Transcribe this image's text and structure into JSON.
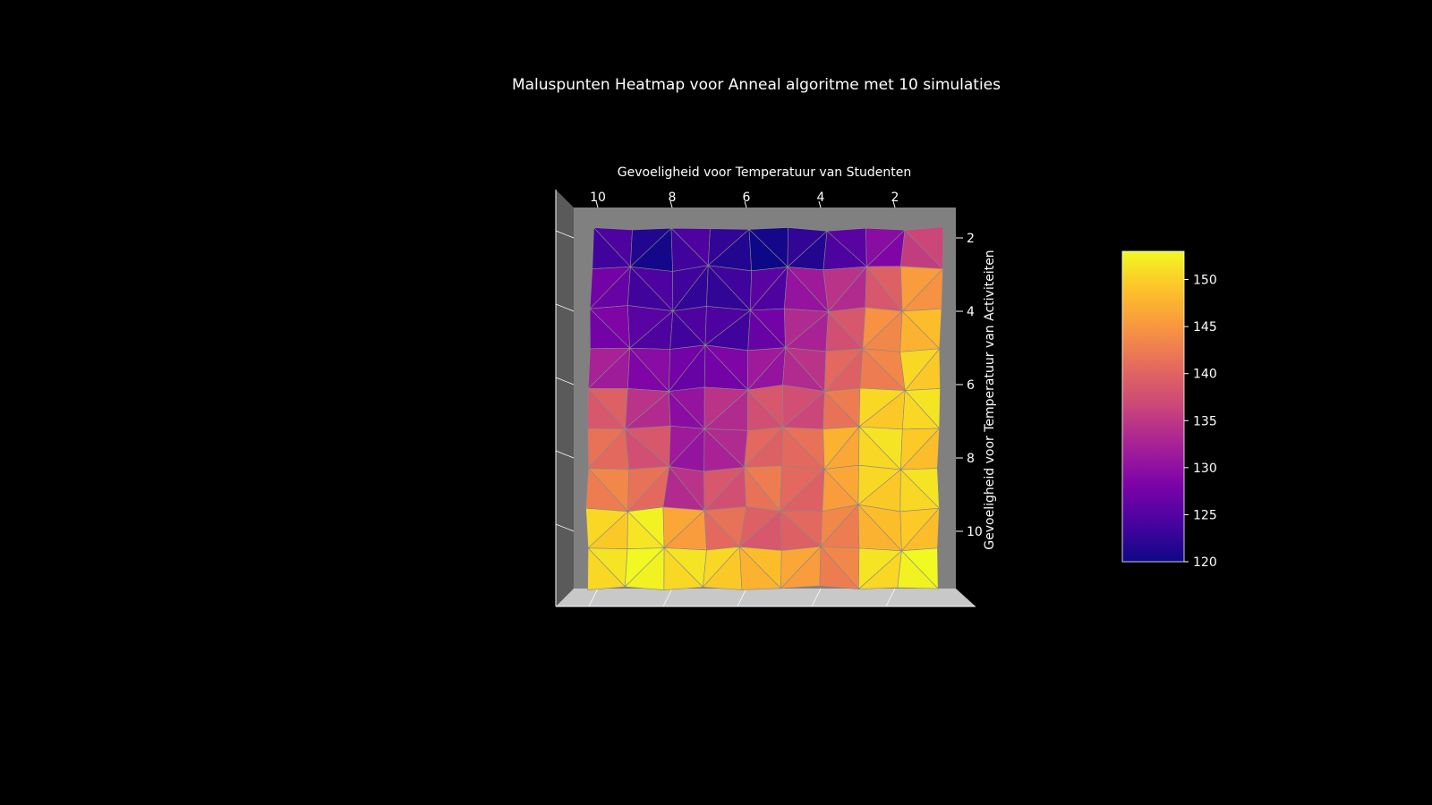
{
  "chart_data": {
    "type": "heatmap",
    "title": "Maluspunten Heatmap voor Anneal algoritme met 10 simulaties",
    "xlabel": "Gevoeligheid voor Temperatuur van Studenten",
    "ylabel": "Gevoeligheid voor Temperatuur van Activiteiten",
    "x": [
      10,
      9,
      8,
      7,
      6,
      5,
      4,
      3,
      2,
      1
    ],
    "y": [
      2,
      3,
      4,
      5,
      6,
      7,
      8,
      9,
      10,
      11
    ],
    "z": [
      [
        124,
        121,
        124,
        122,
        120,
        122,
        125,
        129,
        136
      ],
      [
        127,
        124,
        123,
        123,
        125,
        131,
        134,
        139,
        145
      ],
      [
        128,
        125,
        124,
        124,
        127,
        133,
        138,
        144,
        148
      ],
      [
        132,
        129,
        127,
        128,
        131,
        134,
        140,
        143,
        150
      ],
      [
        139,
        134,
        130,
        134,
        138,
        137,
        142,
        150,
        151
      ],
      [
        141,
        138,
        131,
        133,
        140,
        141,
        147,
        151,
        149
      ],
      [
        143,
        141,
        134,
        138,
        142,
        140,
        146,
        150,
        151
      ],
      [
        150,
        152,
        146,
        141,
        139,
        140,
        143,
        148,
        149
      ],
      [
        151,
        153,
        151,
        150,
        148,
        146,
        143,
        151,
        153
      ]
    ],
    "x_ticks": [
      "10",
      "8",
      "6",
      "4",
      "2"
    ],
    "y_ticks": [
      "2",
      "4",
      "6",
      "8",
      "10"
    ],
    "colorbar": {
      "colormap": "plasma",
      "min": 120,
      "max": 153,
      "ticks": [
        "120",
        "125",
        "130",
        "135",
        "140",
        "145",
        "150"
      ]
    },
    "background": "#000000",
    "pane_color": "#808080",
    "edge_color": "#888888"
  }
}
